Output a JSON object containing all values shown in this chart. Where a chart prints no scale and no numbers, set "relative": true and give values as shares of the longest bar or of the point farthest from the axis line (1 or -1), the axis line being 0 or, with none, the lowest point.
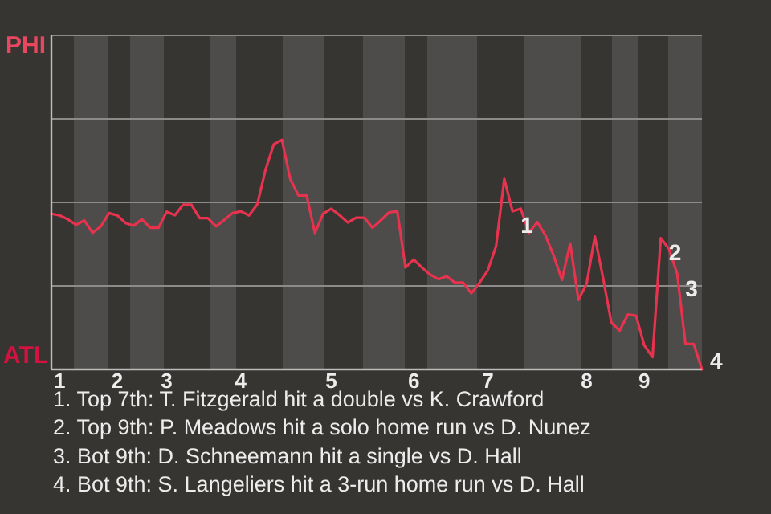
{
  "chart_data": {
    "type": "line",
    "relative": true,
    "categories": [
      null,
      "1",
      null,
      null,
      null,
      null,
      null,
      null,
      "2",
      null,
      null,
      null,
      null,
      null,
      "3",
      null,
      null,
      null,
      null,
      null,
      null,
      null,
      null,
      "4",
      null,
      null,
      null,
      null,
      null,
      null,
      null,
      null,
      null,
      null,
      "5",
      null,
      null,
      null,
      null,
      null,
      null,
      null,
      null,
      null,
      "6",
      null,
      null,
      null,
      null,
      null,
      null,
      null,
      null,
      "7",
      null,
      null,
      null,
      null,
      null,
      null,
      null,
      null,
      null,
      null,
      null,
      "8",
      null,
      null,
      null,
      null,
      null,
      null,
      "9",
      null,
      null,
      null,
      null,
      null,
      null,
      null
    ],
    "series": [
      {
        "color": "#e8334f",
        "values": [
          0.678,
          0.671,
          0.654,
          0.63,
          0.649,
          0.595,
          0.623,
          0.681,
          0.671,
          0.638,
          0.626,
          0.654,
          0.617,
          0.617,
          0.687,
          0.672,
          0.718,
          0.718,
          0.659,
          0.659,
          0.623,
          0.652,
          0.681,
          0.689,
          0.671,
          0.719,
          0.869,
          0.981,
          1,
          0.83,
          0.758,
          0.758,
          0.594,
          0.678,
          0.7,
          0.672,
          0.64,
          0.661,
          0.661,
          0.617,
          0.649,
          0.684,
          0.689,
          0.444,
          0.479,
          0.444,
          0.413,
          0.393,
          0.406,
          0.378,
          0.378,
          0.332,
          0.378,
          0.432,
          0.537,
          0.83,
          0.689,
          0.7,
          0.595,
          0.642,
          0.584,
          0.495,
          0.39,
          0.549,
          0.303,
          0.374,
          0.579,
          0.397,
          0.204,
          0.169,
          0.239,
          0.234,
          0.105,
          0.054,
          0.572,
          0.525,
          0.416,
          0.111,
          0.111,
          0
        ]
      }
    ],
    "marker": "none",
    "ref_lines": [
      {
        "axis": "y",
        "value": 0.364,
        "color": "#8c8b89"
      },
      {
        "axis": "y",
        "value": 0.728,
        "color": "#8c8b89"
      },
      {
        "axis": "y",
        "value": 1.092,
        "color": "#8c8b89"
      }
    ],
    "annotations": [
      "PHI",
      "ATL",
      "1",
      "2",
      "3",
      "4",
      "1. Top 7th: T. Fitzgerald hit a double vs K. Crawford",
      "2. Top 9th: P. Meadows hit a solo home run vs D. Nunez",
      "3. Bot 9th: D. Schneemann hit a single vs D. Hall",
      "4. Bot 9th: S. Langeliers hit a 3-run home run vs D. Hall"
    ]
  }
}
